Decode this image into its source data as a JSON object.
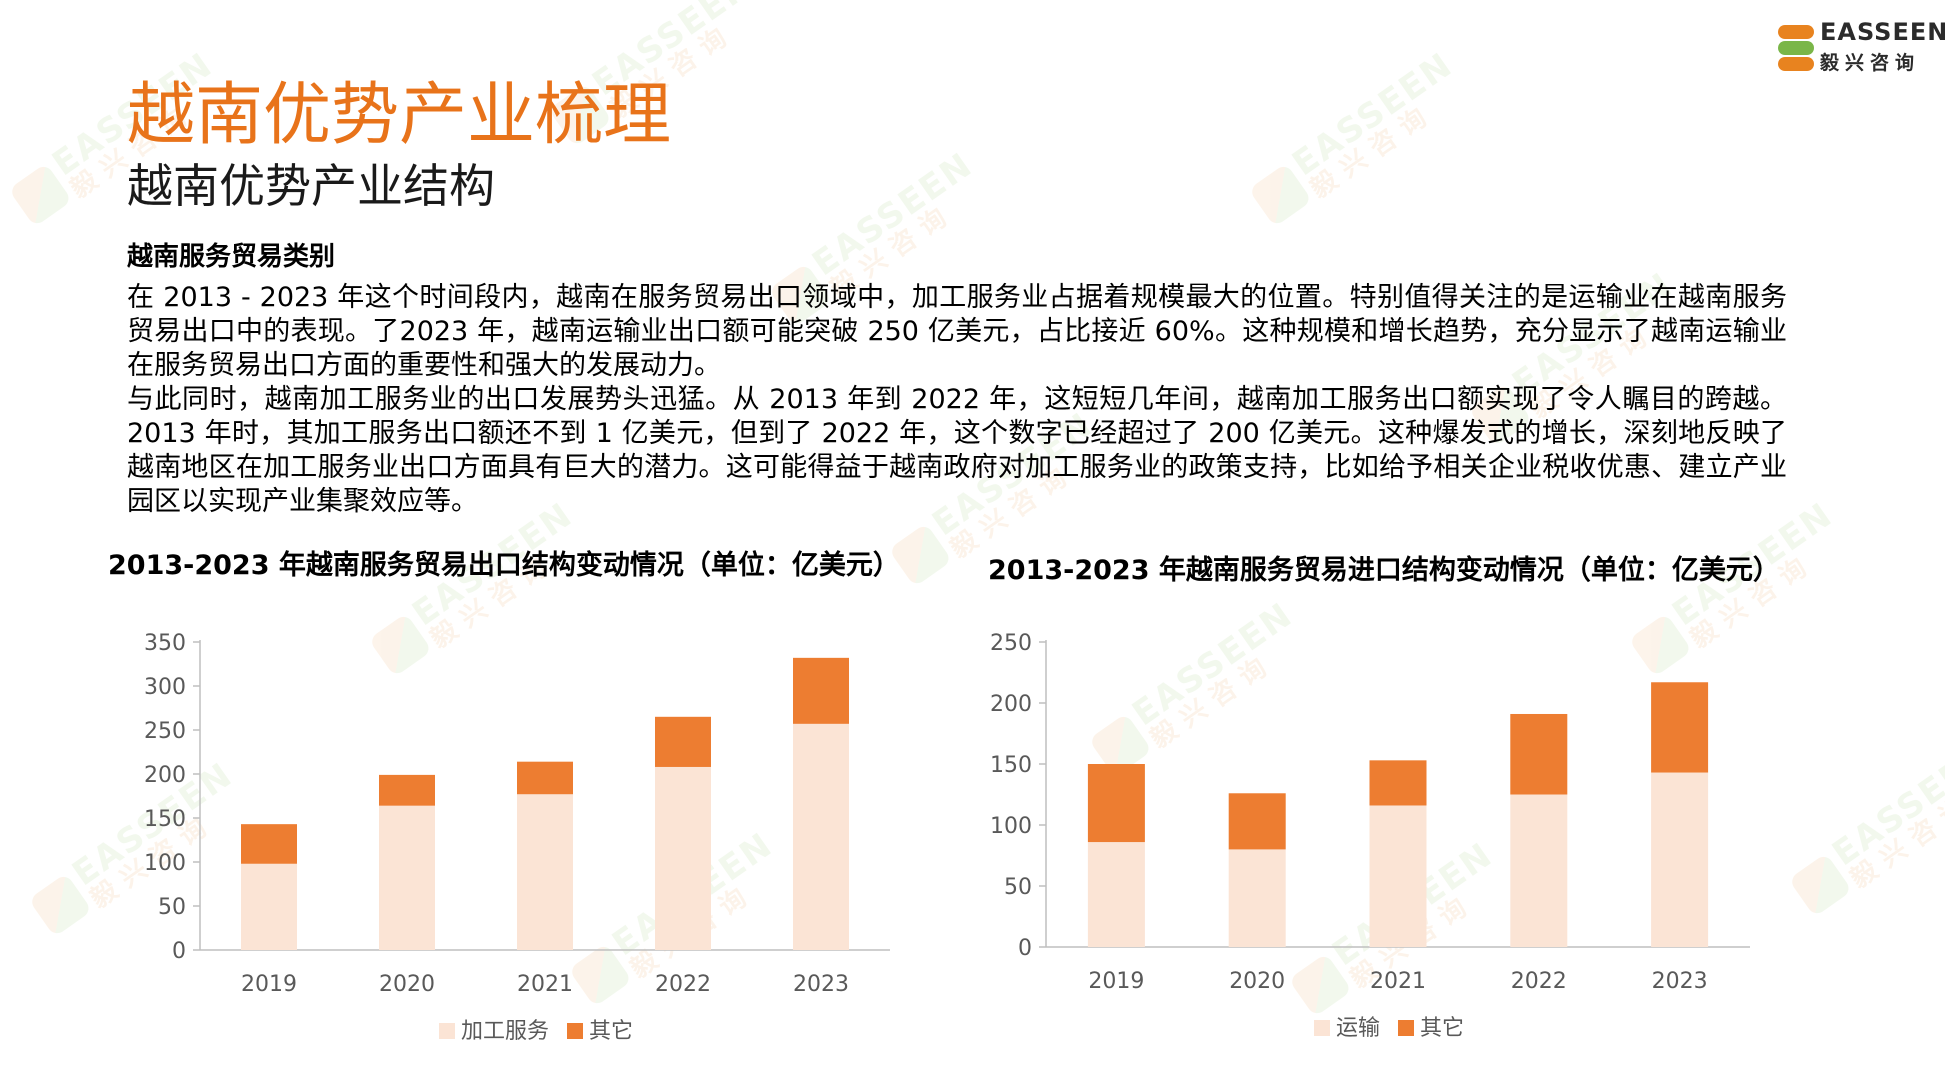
{
  "header": {
    "title": "越南优势产业梳理",
    "subtitle": "越南优势产业结构",
    "logo_text": "EASSEEN",
    "logo_cn": "毅兴咨询"
  },
  "section": {
    "heading": "越南服务贸易类别",
    "paragraphs": [
      "在 2013 - 2023 年这个时间段内，越南在服务贸易出口领域中，加工服务业占据着规模最大的位置。特别值得关注的是运输业在越南服务贸易出口中的表现。了2023 年，越南运输业出口额可能突破 250 亿美元，占比接近 60%。这种规模和增长趋势，充分显示了越南运输业在服务贸易出口方面的重要性和强大的发展动力。",
      "与此同时，越南加工服务业的出口发展势头迅猛。从 2013 年到 2022 年，这短短几年间，越南加工服务出口额实现了令人瞩目的跨越。2013 年时，其加工服务出口额还不到 1 亿美元，但到了 2022 年，这个数字已经超过了 200 亿美元。这种爆发式的增长，深刻地反映了越南地区在加工服务业出口方面具有巨大的潜力。这可能得益于越南政府对加工服务业的政策支持，比如给予相关企业税收优惠、建立产业园区以实现产业集聚效应等。"
    ]
  },
  "colors": {
    "light": "#fbe4d5",
    "dark": "#ed7d31",
    "axis": "#bfbfbf",
    "tick_text": "#595959",
    "title": "#e8731a"
  },
  "chart_data": [
    {
      "type": "bar",
      "stacked": true,
      "title": "2013-2023 年越南服务贸易出口结构变动情况（单位：亿美元）",
      "categories": [
        "2019",
        "2020",
        "2021",
        "2022",
        "2023"
      ],
      "series": [
        {
          "name": "加工服务",
          "values": [
            98,
            164,
            177,
            208,
            257
          ]
        },
        {
          "name": "其它",
          "values": [
            45,
            35,
            37,
            57,
            75
          ]
        }
      ],
      "ylim": [
        0,
        350
      ],
      "yticks": [
        0,
        50,
        100,
        150,
        200,
        250,
        300,
        350
      ],
      "legend": "bottom",
      "grid": false
    },
    {
      "type": "bar",
      "stacked": true,
      "title": "2013-2023 年越南服务贸易进口结构变动情况（单位：亿美元）",
      "categories": [
        "2019",
        "2020",
        "2021",
        "2022",
        "2023"
      ],
      "series": [
        {
          "name": "运输",
          "values": [
            86,
            80,
            116,
            125,
            143
          ]
        },
        {
          "name": "其它",
          "values": [
            64,
            46,
            37,
            66,
            74
          ]
        }
      ],
      "ylim": [
        0,
        250
      ],
      "yticks": [
        0,
        50,
        100,
        150,
        200,
        250
      ],
      "legend": "bottom",
      "grid": false
    }
  ]
}
